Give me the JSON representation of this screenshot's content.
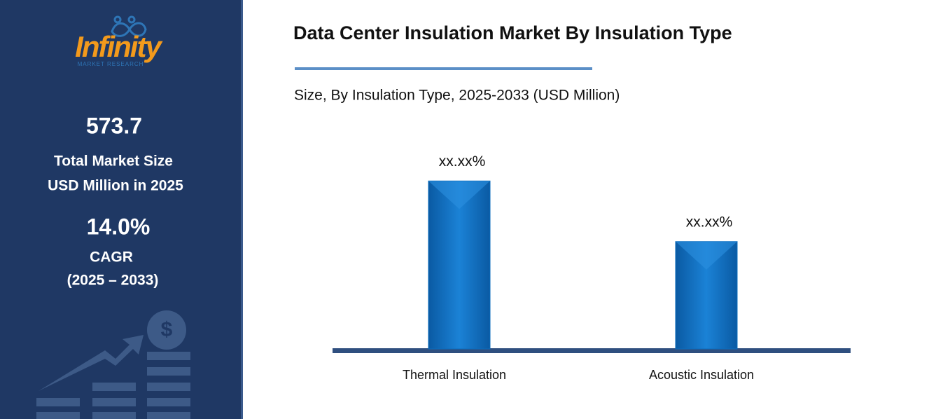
{
  "sidebar": {
    "logo": "Infinity",
    "logo_sub": "MARKET RESEARCH",
    "market_size": "573.7",
    "market_size_label_1": "Total Market Size",
    "market_size_label_2": "USD Million in 2025",
    "cagr": "14.0%",
    "cagr_label": "CAGR",
    "cagr_period": "(2025 – 2033)"
  },
  "chart_data": {
    "type": "bar",
    "title": "Data Center Insulation Market By Insulation Type",
    "subtitle": "Size, By Insulation Type, 2025-2033 (USD Million)",
    "categories": [
      "Thermal Insulation",
      "Acoustic Insulation"
    ],
    "values": [
      61,
      39
    ],
    "value_labels": [
      "xx.xx%",
      "xx.xx%"
    ],
    "color": "#0b6cbd"
  }
}
